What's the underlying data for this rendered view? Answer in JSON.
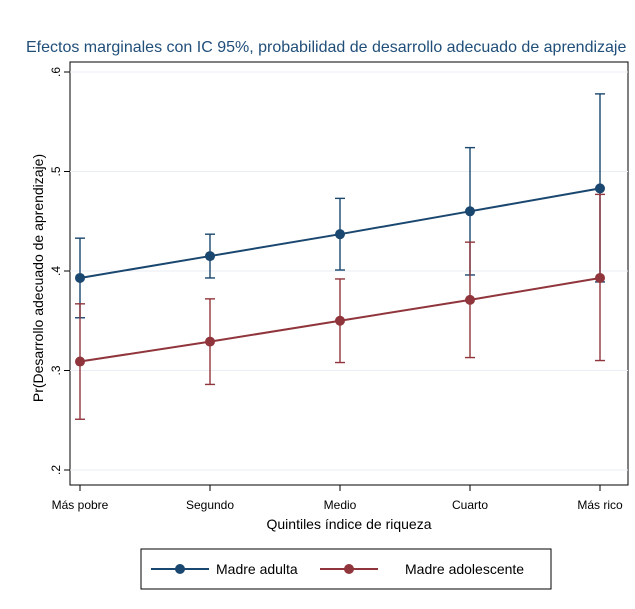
{
  "chart_data": {
    "type": "line",
    "title": "Efectos marginales con IC 95%, probabilidad de desarrollo adecuado de aprendizaje",
    "xlabel": "Quintiles índice de riqueza",
    "ylabel": "Pr(Desarrollo adecuado de aprendizaje)",
    "categories": [
      "Más pobre",
      "Segundo",
      "Medio",
      "Cuarto",
      "Más rico"
    ],
    "ylim": [
      0.2,
      0.6
    ],
    "yticks": [
      0.2,
      0.3,
      0.4,
      0.5,
      0.6
    ],
    "ytick_labels": [
      ".2",
      ".3",
      ".4",
      ".5",
      ".6"
    ],
    "grid": true,
    "legend_position": "bottom",
    "series": [
      {
        "name": "Madre adulta",
        "color": "#1a476f",
        "values": [
          0.393,
          0.415,
          0.437,
          0.46,
          0.483
        ],
        "ci_low": [
          0.353,
          0.393,
          0.401,
          0.396,
          0.389
        ],
        "ci_high": [
          0.433,
          0.437,
          0.473,
          0.524,
          0.578
        ]
      },
      {
        "name": "Madre adolescente",
        "color": "#90353b",
        "values": [
          0.309,
          0.329,
          0.35,
          0.371,
          0.393
        ],
        "ci_low": [
          0.251,
          0.286,
          0.308,
          0.313,
          0.31
        ],
        "ci_high": [
          0.367,
          0.372,
          0.392,
          0.429,
          0.477
        ]
      }
    ]
  }
}
